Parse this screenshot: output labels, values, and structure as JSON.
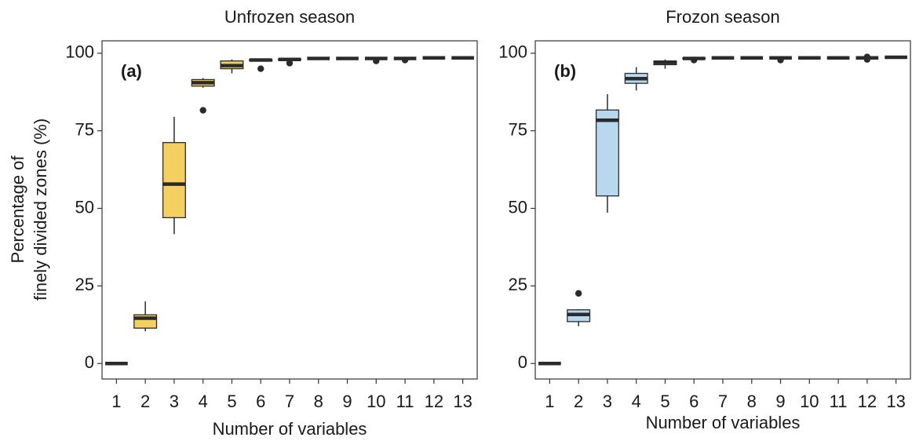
{
  "chart_data": [
    {
      "type": "box",
      "title": "Unfrozen season",
      "panel_label": "(a)",
      "xlabel": "Number of variables",
      "ylabel": [
        "Percentage of",
        "finely divided zones (%)"
      ],
      "color": "#f5d060",
      "categories": [
        "1",
        "2",
        "3",
        "4",
        "5",
        "6",
        "7",
        "8",
        "9",
        "10",
        "11",
        "12",
        "13"
      ],
      "boxes": [
        {
          "min": 0,
          "q1": 0,
          "median": 0,
          "q3": 0,
          "max": 0
        },
        {
          "min": 10.4,
          "q1": 11.4,
          "median": 14.6,
          "q3": 15.7,
          "max": 20
        },
        {
          "min": 41.7,
          "q1": 47,
          "median": 57.8,
          "q3": 71.2,
          "max": 79.5
        },
        {
          "min": 88.9,
          "q1": 89.4,
          "median": 90.5,
          "q3": 91.5,
          "max": 92,
          "outliers": [
            81.6
          ]
        },
        {
          "min": 93.5,
          "q1": 95,
          "median": 96,
          "q3": 97.5,
          "max": 98
        },
        {
          "min": 97.3,
          "q1": 97.5,
          "median": 97.8,
          "q3": 98,
          "max": 98.2,
          "outliers": [
            95
          ]
        },
        {
          "min": 97.8,
          "q1": 97.9,
          "median": 98,
          "q3": 98.1,
          "max": 98.2,
          "outliers": [
            96.8
          ]
        },
        {
          "min": 98.3,
          "q1": 98.3,
          "median": 98.3,
          "q3": 98.3,
          "max": 98.3
        },
        {
          "min": 98.3,
          "q1": 98.3,
          "median": 98.3,
          "q3": 98.3,
          "max": 98.3
        },
        {
          "min": 98.3,
          "q1": 98.3,
          "median": 98.3,
          "q3": 98.3,
          "max": 98.3,
          "outliers": [
            97.5
          ]
        },
        {
          "min": 98.3,
          "q1": 98.3,
          "median": 98.3,
          "q3": 98.3,
          "max": 98.3,
          "outliers": [
            97.8
          ]
        },
        {
          "min": 98.5,
          "q1": 98.5,
          "median": 98.5,
          "q3": 98.5,
          "max": 98.5
        },
        {
          "min": 98.5,
          "q1": 98.5,
          "median": 98.5,
          "q3": 98.5,
          "max": 98.5
        }
      ],
      "ylim": [
        -5,
        104
      ],
      "yticks": [
        0,
        25,
        50,
        75,
        100
      ]
    },
    {
      "type": "box",
      "title": "Frozon season",
      "panel_label": "(b)",
      "xlabel": "Number of variables",
      "color": "#b8d8ef",
      "categories": [
        "1",
        "2",
        "3",
        "4",
        "5",
        "6",
        "7",
        "8",
        "9",
        "10",
        "11",
        "12",
        "13"
      ],
      "boxes": [
        {
          "min": 0,
          "q1": 0,
          "median": 0,
          "q3": 0,
          "max": 0
        },
        {
          "min": 12,
          "q1": 13.5,
          "median": 15.8,
          "q3": 17.3,
          "max": 17.5,
          "outliers": [
            22.6
          ]
        },
        {
          "min": 48.6,
          "q1": 54,
          "median": 78.4,
          "q3": 81.7,
          "max": 86.8
        },
        {
          "min": 88,
          "q1": 90.3,
          "median": 91.8,
          "q3": 93.5,
          "max": 95.5
        },
        {
          "min": 95,
          "q1": 96.3,
          "median": 97,
          "q3": 97.5,
          "max": 98
        },
        {
          "min": 98.2,
          "q1": 98.3,
          "median": 98.3,
          "q3": 98.4,
          "max": 98.5,
          "outliers": [
            97.8
          ]
        },
        {
          "min": 98.5,
          "q1": 98.5,
          "median": 98.5,
          "q3": 98.5,
          "max": 98.5
        },
        {
          "min": 98.5,
          "q1": 98.5,
          "median": 98.5,
          "q3": 98.5,
          "max": 98.5
        },
        {
          "min": 98.5,
          "q1": 98.5,
          "median": 98.5,
          "q3": 98.5,
          "max": 98.5,
          "outliers": [
            97.8
          ]
        },
        {
          "min": 98.5,
          "q1": 98.5,
          "median": 98.5,
          "q3": 98.5,
          "max": 98.5
        },
        {
          "min": 98.5,
          "q1": 98.5,
          "median": 98.5,
          "q3": 98.5,
          "max": 98.5
        },
        {
          "min": 98.5,
          "q1": 98.5,
          "median": 98.5,
          "q3": 98.5,
          "max": 98.5,
          "outliers": [
            98.8,
            98
          ]
        },
        {
          "min": 98.7,
          "q1": 98.7,
          "median": 98.7,
          "q3": 98.7,
          "max": 98.7
        }
      ],
      "ylim": [
        -5,
        104
      ],
      "yticks": [
        0,
        25,
        50,
        75,
        100
      ]
    }
  ]
}
